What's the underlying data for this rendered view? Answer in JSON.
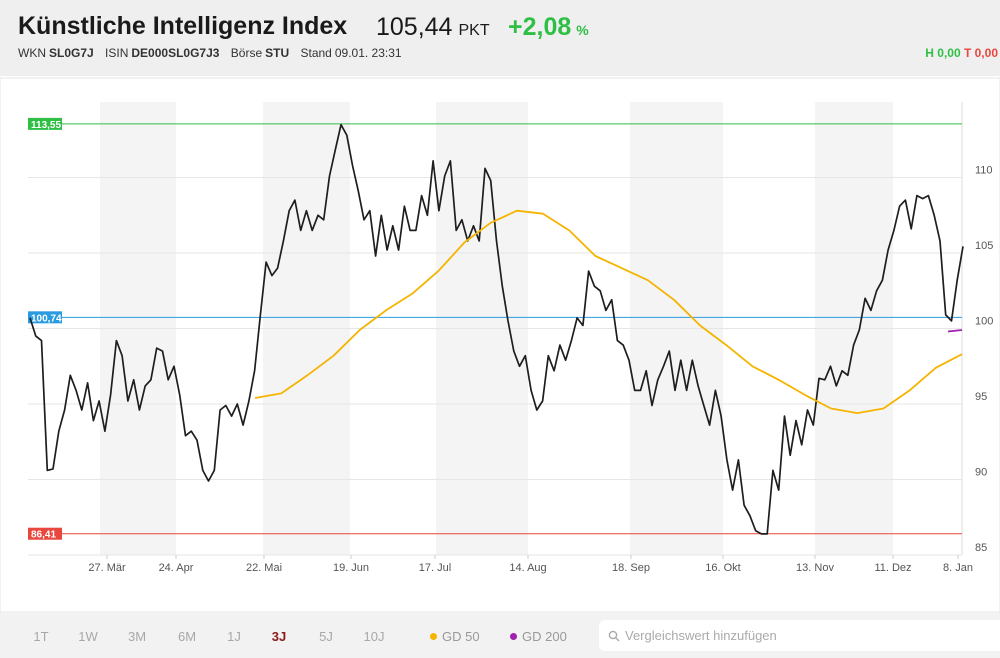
{
  "header": {
    "title": "Künstliche Intelligenz Index",
    "price": "105,44",
    "unit": "PKT",
    "change": "+2,08",
    "change_unit": "%",
    "meta": [
      {
        "label": "WKN",
        "value": "SL0G7J"
      },
      {
        "label": "ISIN",
        "value": "DE000SL0G7J3"
      },
      {
        "label": "Börse",
        "value": "STU"
      },
      {
        "label": "Stand",
        "value": "09.01. 23:31"
      }
    ],
    "high": "H 0,00",
    "low": "T 0,00"
  },
  "chart_data": {
    "type": "line",
    "x_labels": [
      "27. Mär",
      "24. Apr",
      "22. Mai",
      "19. Jun",
      "17. Jul",
      "14. Aug",
      "18. Sep",
      "16. Okt",
      "13. Nov",
      "11. Dez",
      "8. Jan"
    ],
    "ylim": [
      85,
      115
    ],
    "yticks": [
      85,
      90,
      95,
      100,
      105,
      110
    ],
    "grid": true,
    "series": [
      {
        "color": "#1e1e1e",
        "values": [
          100.7,
          99.5,
          99.2,
          90.6,
          90.7,
          93.2,
          94.6,
          96.9,
          95.9,
          94.6,
          96.4,
          93.9,
          95.2,
          93.2,
          95.6,
          99.2,
          98.2,
          95.2,
          96.6,
          94.6,
          96.2,
          96.6,
          98.7,
          98.5,
          96.6,
          97.5,
          95.6,
          92.9,
          93.2,
          92.6,
          90.6,
          89.9,
          90.6,
          94.6,
          94.9,
          94.2,
          95.0,
          93.6,
          95.2,
          97.2,
          100.9,
          104.4,
          103.5,
          104.0,
          105.8,
          107.8,
          108.5,
          106.5,
          107.8,
          106.5,
          107.5,
          107.2,
          110.1,
          111.8,
          113.5,
          112.8,
          110.8,
          109.1,
          107.2,
          107.8,
          104.8,
          107.5,
          105.2,
          106.8,
          105.2,
          108.1,
          106.5,
          106.5,
          108.8,
          107.5,
          111.1,
          107.8,
          110.1,
          111.1,
          106.5,
          107.2,
          105.8,
          106.8,
          105.8,
          110.6,
          109.8,
          105.8,
          102.8,
          100.5,
          98.5,
          97.5,
          98.2,
          95.9,
          94.6,
          95.2,
          98.2,
          97.2,
          98.9,
          97.9,
          99.2,
          100.7,
          100.2,
          103.8,
          102.8,
          102.5,
          101.2,
          101.9,
          99.2,
          98.9,
          97.9,
          95.9,
          95.9,
          97.2,
          94.9,
          96.6,
          97.5,
          98.5,
          95.9,
          97.9,
          95.9,
          97.9,
          96.2,
          94.9,
          93.6,
          95.9,
          94.2,
          91.3,
          89.3,
          91.3,
          88.3,
          87.6,
          86.6,
          86.4,
          86.4,
          90.6,
          89.3,
          94.2,
          91.6,
          93.9,
          92.3,
          94.6,
          93.6,
          96.7,
          96.6,
          97.5,
          96.2,
          97.2,
          96.9,
          98.9,
          99.9,
          102.0,
          101.2,
          102.5,
          103.2,
          105.2,
          106.5,
          108.1,
          108.5,
          106.6,
          108.8,
          108.6,
          108.8,
          107.5,
          105.8,
          100.9,
          100.5,
          103.2,
          105.44
        ]
      },
      {
        "name": "GD 50",
        "color": "#f5b400",
        "values": [
          95.4,
          95.7,
          96.9,
          98.2,
          99.9,
          101.2,
          102.3,
          103.8,
          105.7,
          107.0,
          107.8,
          107.6,
          106.5,
          104.8,
          104.0,
          103.2,
          101.9,
          100.2,
          98.9,
          97.5,
          96.6,
          95.6,
          94.7,
          94.4,
          94.7,
          95.9,
          97.4,
          98.3
        ]
      },
      {
        "name": "GD 200",
        "color": "#a020b0",
        "values": [
          99.8,
          99.9
        ]
      }
    ],
    "reference_lines": [
      {
        "value": 113.55,
        "label": "113,55",
        "color": "#2fbf45"
      },
      {
        "value": 100.74,
        "label": "100,74",
        "color": "#2a9be0"
      },
      {
        "value": 86.41,
        "label": "86,41",
        "color": "#e8473d"
      }
    ]
  },
  "toolbar": {
    "ranges": [
      "1T",
      "1W",
      "3M",
      "6M",
      "1J",
      "3J",
      "5J",
      "10J"
    ],
    "active": 5,
    "search_placeholder": "Vergleichswert hinzufügen"
  }
}
